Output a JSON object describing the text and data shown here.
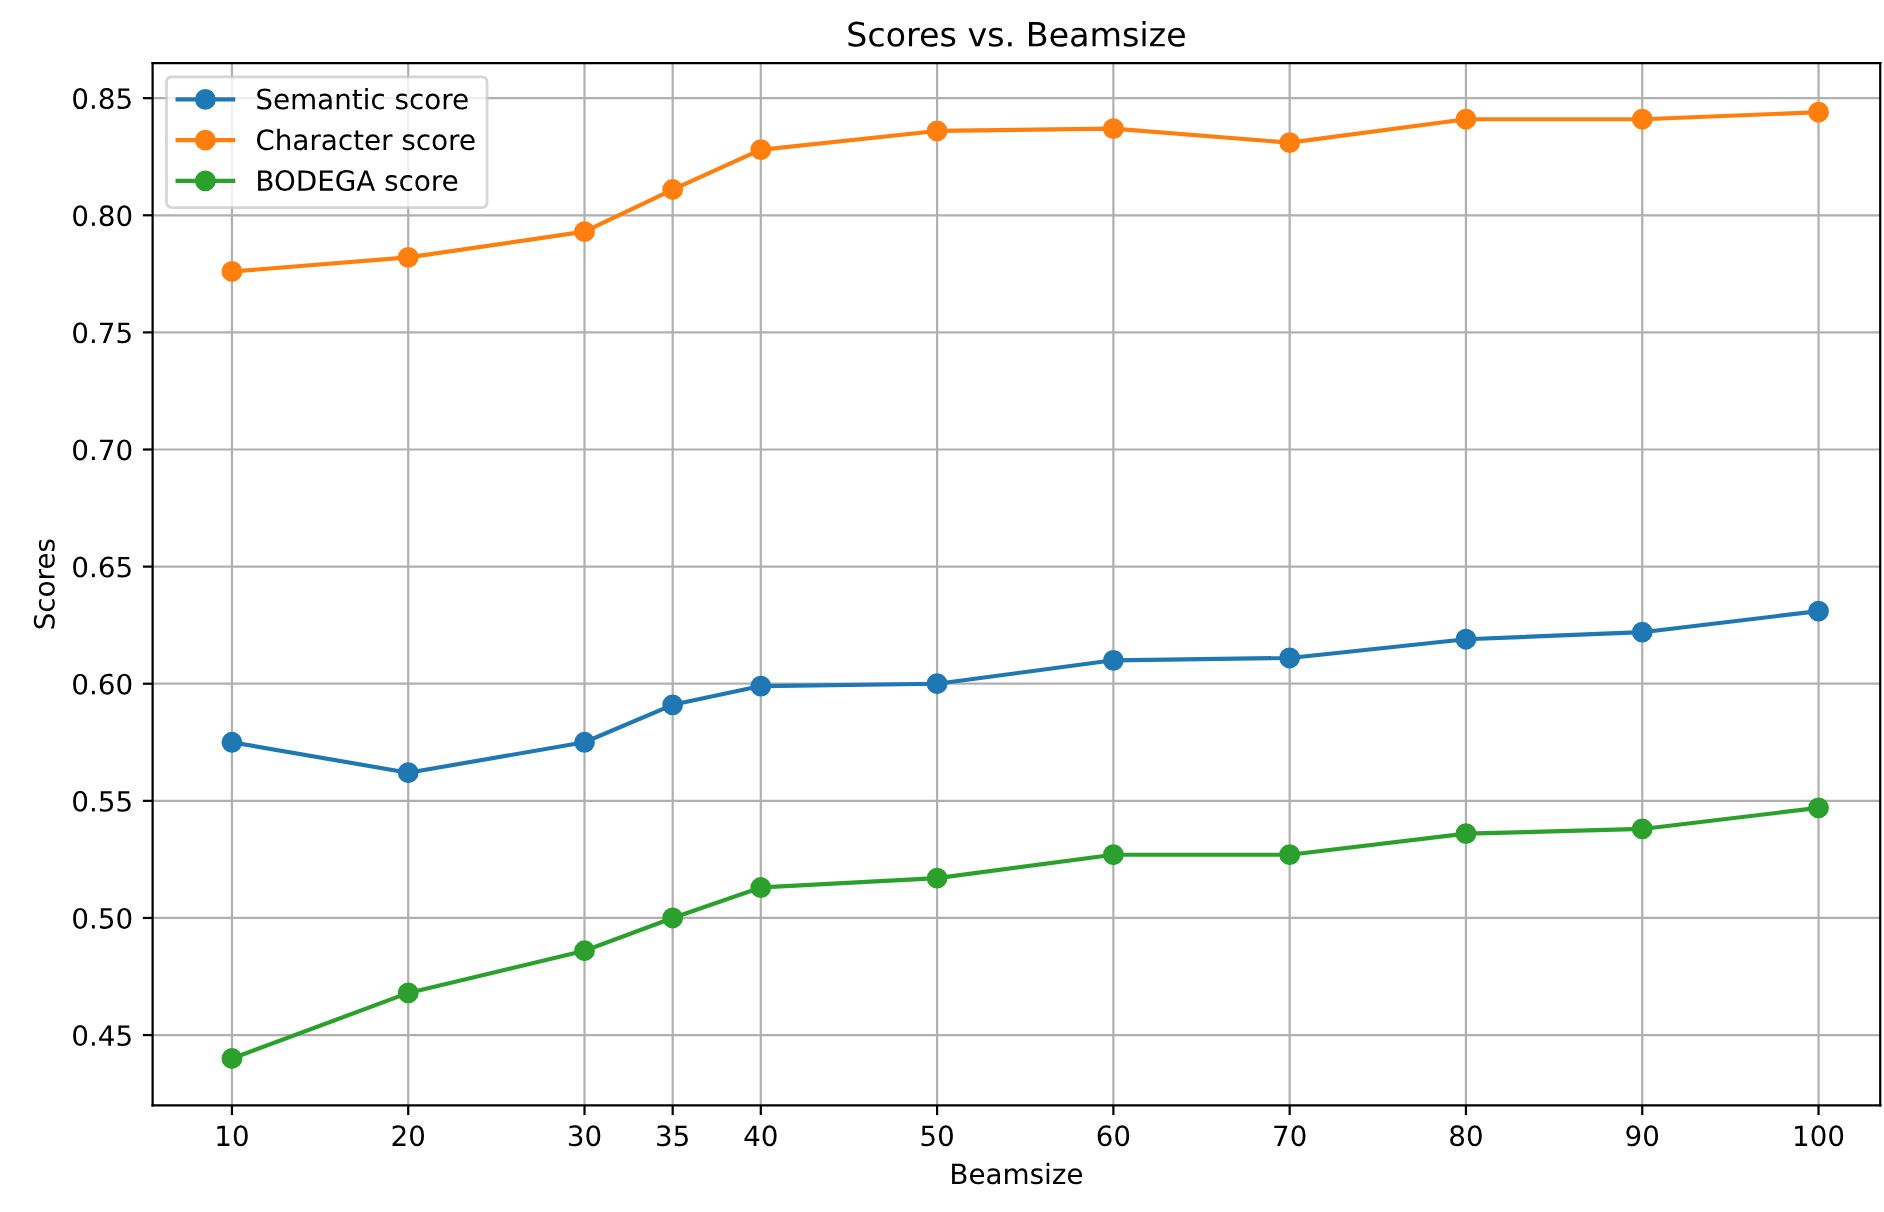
{
  "chart_data": {
    "type": "line",
    "title": "Scores vs. Beamsize",
    "xlabel": "Beamsize",
    "ylabel": "Scores",
    "x": [
      10,
      20,
      30,
      35,
      40,
      50,
      60,
      70,
      80,
      90,
      100
    ],
    "series": [
      {
        "name": "Semantic score",
        "color": "#1f77b4",
        "values": [
          0.575,
          0.562,
          0.575,
          0.591,
          0.599,
          0.6,
          0.61,
          0.611,
          0.619,
          0.622,
          0.631
        ]
      },
      {
        "name": "Character score",
        "color": "#ff7f0e",
        "values": [
          0.776,
          0.782,
          0.793,
          0.811,
          0.828,
          0.836,
          0.837,
          0.831,
          0.841,
          0.841,
          0.844
        ]
      },
      {
        "name": "BODEGA score",
        "color": "#2ca02c",
        "values": [
          0.44,
          0.468,
          0.486,
          0.5,
          0.513,
          0.517,
          0.527,
          0.527,
          0.536,
          0.538,
          0.547
        ]
      }
    ],
    "xlim": [
      5.5,
      103.5
    ],
    "xticks": [
      10,
      20,
      30,
      35,
      40,
      50,
      60,
      70,
      80,
      90,
      100
    ],
    "ylim": [
      0.42,
      0.865
    ],
    "yticks": [
      {
        "value": 0.45,
        "label": "0.45"
      },
      {
        "value": 0.5,
        "label": "0.50"
      },
      {
        "value": 0.55,
        "label": "0.55"
      },
      {
        "value": 0.6,
        "label": "0.60"
      },
      {
        "value": 0.65,
        "label": "0.65"
      },
      {
        "value": 0.7,
        "label": "0.70"
      },
      {
        "value": 0.75,
        "label": "0.75"
      },
      {
        "value": 0.8,
        "label": "0.80"
      },
      {
        "value": 0.85,
        "label": "0.85"
      }
    ],
    "grid": true,
    "legend": "top left",
    "marker": "circle",
    "line_style": "solid"
  }
}
